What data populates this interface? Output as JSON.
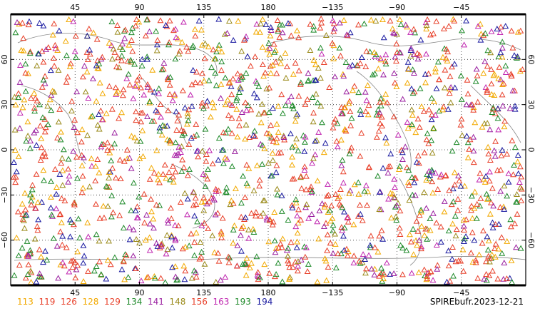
{
  "map": {
    "projection": "cylindrical-equidistant",
    "center_longitude": 180,
    "lon_tick_labels": [
      "45",
      "90",
      "135",
      "180",
      "−135",
      "−90",
      "−45"
    ],
    "lat_tick_labels": [
      "60",
      "30",
      "0",
      "−30",
      "−60"
    ],
    "gridlines": "dotted",
    "marker_shape": "triangle-outline"
  },
  "legend": [
    {
      "label": "113",
      "color": "#f2a900"
    },
    {
      "label": "119",
      "color": "#e8402a"
    },
    {
      "label": "126",
      "color": "#e8402a"
    },
    {
      "label": "128",
      "color": "#f2a900"
    },
    {
      "label": "129",
      "color": "#e8402a"
    },
    {
      "label": "134",
      "color": "#1f8a2a"
    },
    {
      "label": "141",
      "color": "#9a1fa0"
    },
    {
      "label": "148",
      "color": "#9a8a1a"
    },
    {
      "label": "156",
      "color": "#e8402a"
    },
    {
      "label": "163",
      "color": "#c026b0"
    },
    {
      "label": "193",
      "color": "#1f8a2a"
    },
    {
      "label": "194",
      "color": "#1a1aa0"
    }
  ],
  "source_label": "SPIREbufr.2023-12-21"
}
